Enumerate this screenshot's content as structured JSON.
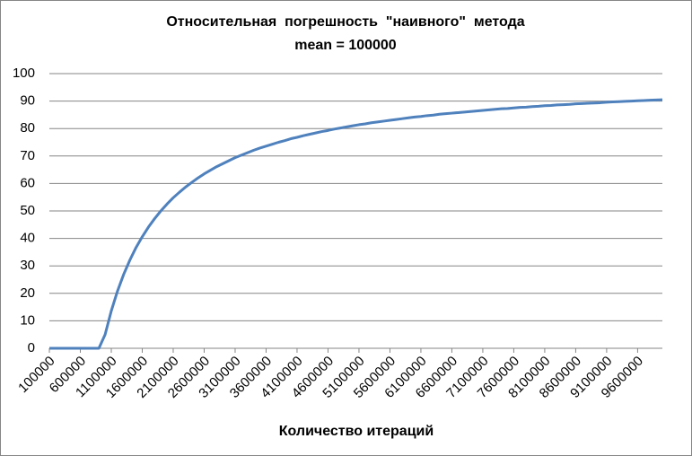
{
  "chart_data": {
    "type": "line",
    "title": "Относительная  погрешность  \"наивного\"  метода",
    "subtitle": "mean = 100000",
    "x_label": "Количество итераций",
    "categories": [
      "100000",
      null,
      null,
      null,
      null,
      "600000",
      null,
      null,
      null,
      null,
      "1100000",
      null,
      null,
      null,
      null,
      "1600000",
      null,
      null,
      null,
      null,
      "2100000",
      null,
      null,
      null,
      null,
      "2600000",
      null,
      null,
      null,
      null,
      "3100000",
      null,
      null,
      null,
      null,
      "3600000",
      null,
      null,
      null,
      null,
      "4100000",
      null,
      null,
      null,
      null,
      "4600000",
      null,
      null,
      null,
      null,
      "5100000",
      null,
      null,
      null,
      null,
      "5600000",
      null,
      null,
      null,
      null,
      "6100000",
      null,
      null,
      null,
      null,
      "6600000",
      null,
      null,
      null,
      null,
      "7100000",
      null,
      null,
      null,
      null,
      "7600000",
      null,
      null,
      null,
      null,
      "8100000",
      null,
      null,
      null,
      null,
      "8600000",
      null,
      null,
      null,
      null,
      "9100000",
      null,
      null,
      null,
      null,
      "9600000",
      null,
      null,
      null,
      null
    ],
    "values": [
      0,
      0,
      0,
      0,
      0,
      0,
      0,
      0,
      0,
      5.0,
      13.6,
      20.8,
      26.9,
      32.1,
      36.7,
      40.6,
      44.1,
      47.2,
      50.0,
      52.5,
      54.8,
      56.8,
      58.7,
      60.4,
      62.0,
      63.5,
      64.8,
      66.1,
      67.2,
      68.3,
      69.4,
      70.3,
      71.2,
      72.1,
      72.9,
      73.6,
      74.3,
      75.0,
      75.6,
      76.3,
      76.8,
      77.4,
      77.9,
      78.4,
      78.9,
      79.3,
      79.8,
      80.2,
      80.6,
      81.0,
      81.4,
      81.7,
      82.1,
      82.4,
      82.7,
      83.0,
      83.3,
      83.6,
      83.9,
      84.2,
      84.4,
      84.7,
      84.9,
      85.2,
      85.4,
      85.6,
      85.8,
      86.0,
      86.2,
      86.4,
      86.6,
      86.8,
      87.0,
      87.2,
      87.3,
      87.5,
      87.7,
      87.8,
      88.0,
      88.1,
      88.3,
      88.4,
      88.6,
      88.7,
      88.8,
      89.0,
      89.1,
      89.2,
      89.3,
      89.4,
      89.6,
      89.7,
      89.8,
      89.9,
      90.0,
      90.1,
      90.2,
      90.3,
      90.4,
      90.5
    ],
    "color": "#4f81bd",
    "ylim": [
      0,
      100
    ],
    "yticks": [
      0,
      10,
      20,
      30,
      40,
      50,
      60,
      70,
      80,
      90,
      100
    ],
    "grid": true
  }
}
